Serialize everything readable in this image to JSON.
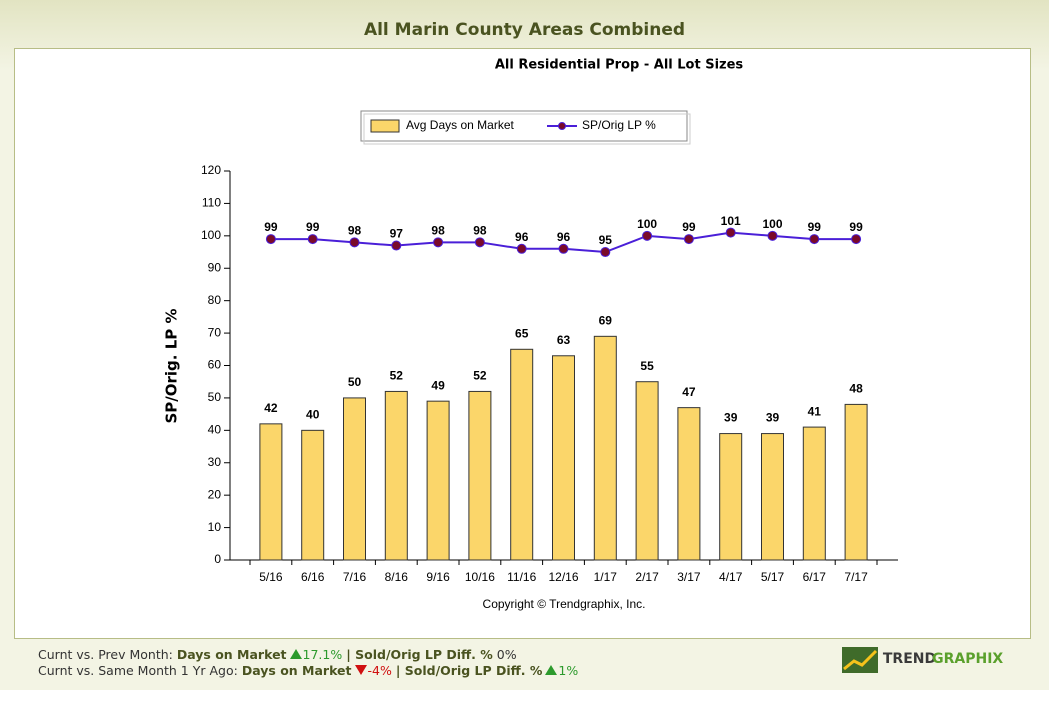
{
  "chart_data": {
    "type": "bar",
    "title": "All Marin County Areas Combined",
    "subtitle": "All Residential Prop - All Lot Sizes",
    "y_label": "SP/Orig. LP %",
    "source": "Copyright © Trendgraphix, Inc.",
    "categories": [
      "5/16",
      "6/16",
      "7/16",
      "8/16",
      "9/16",
      "10/16",
      "11/16",
      "12/16",
      "1/17",
      "2/17",
      "3/17",
      "4/17",
      "5/17",
      "6/17",
      "7/17"
    ],
    "series": [
      {
        "name": "Avg Days on Market",
        "type": "bar",
        "color": "#fbd66a",
        "values": [
          42,
          40,
          50,
          52,
          49,
          52,
          65,
          63,
          69,
          55,
          47,
          39,
          39,
          41,
          48
        ]
      },
      {
        "name": "SP/Orig LP %",
        "type": "line",
        "color": "#4a1fd8",
        "values": [
          99,
          99,
          98,
          97,
          98,
          98,
          96,
          96,
          95,
          100,
          99,
          101,
          100,
          99,
          99
        ]
      }
    ],
    "ylim": [
      0,
      120
    ],
    "yticks": [
      0,
      10,
      20,
      30,
      40,
      50,
      60,
      70,
      80,
      90,
      100,
      110,
      120
    ]
  },
  "footer": {
    "rows": [
      {
        "label": "Curnt vs. Prev Month:",
        "metric1": "Days on Market",
        "change1": "17.1%",
        "metric2": "| Sold/Orig LP Diff. %",
        "change2": "0%"
      },
      {
        "label": "Curnt vs. Same Month 1 Yr Ago:",
        "metric1": "Days on Market",
        "change1": "-4%",
        "metric2": "| Sold/Orig LP Diff. %",
        "change2": "1%"
      }
    ]
  },
  "logo": {
    "part1": "TREND",
    "part2": "GRAPHIX"
  }
}
